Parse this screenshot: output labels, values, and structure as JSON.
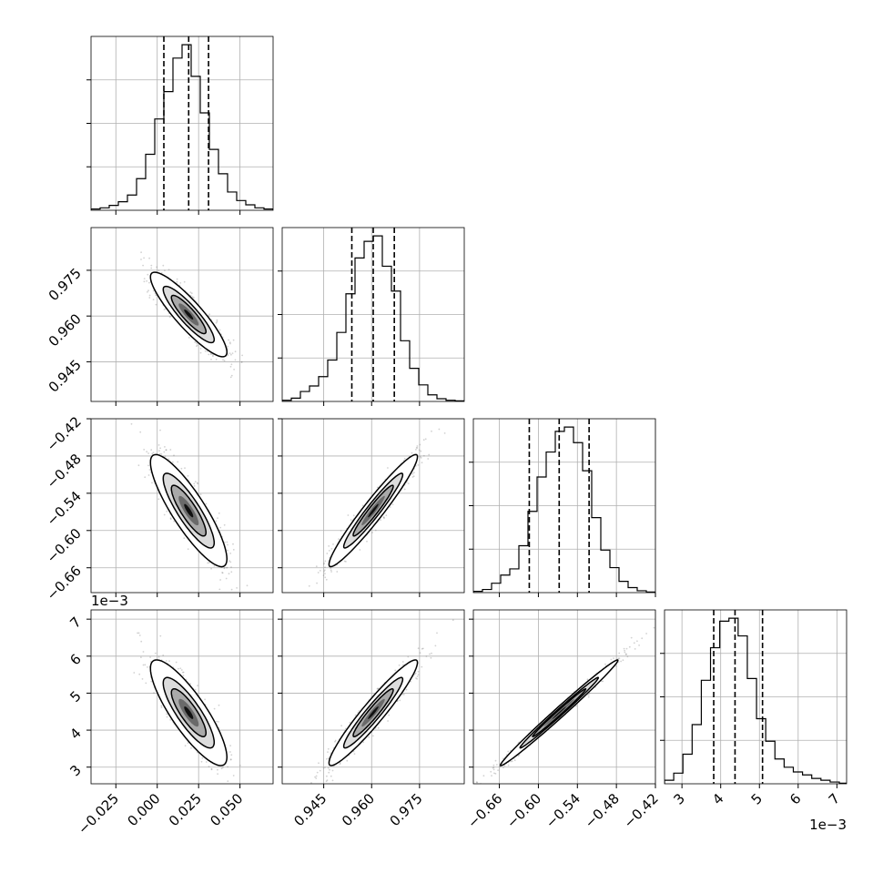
{
  "chart_data": {
    "type": "corner",
    "parameters": 4,
    "grid": true,
    "show_quantiles": true,
    "param_axes": [
      {
        "index": 0,
        "lim": [
          -0.04,
          0.07
        ],
        "ticks": [
          -0.025,
          0.0,
          0.025,
          0.05
        ],
        "tick_labels": [
          "−0.025",
          "0.000",
          "0.025",
          "0.050"
        ],
        "offset_label": ""
      },
      {
        "index": 1,
        "lim": [
          0.932,
          0.989
        ],
        "ticks": [
          0.945,
          0.96,
          0.975
        ],
        "tick_labels": [
          "0.945",
          "0.960",
          "0.975"
        ],
        "offset_label": ""
      },
      {
        "index": 2,
        "lim": [
          -0.7,
          -0.42
        ],
        "ticks": [
          -0.66,
          -0.6,
          -0.54,
          -0.48,
          -0.42
        ],
        "tick_labels": [
          "−0.66",
          "−0.60",
          "−0.54",
          "−0.48",
          "−0.42"
        ],
        "offset_label": ""
      },
      {
        "index": 3,
        "lim": [
          0.00255,
          0.00725
        ],
        "ticks": [
          0.003,
          0.004,
          0.005,
          0.006,
          0.007
        ],
        "tick_labels": [
          "3",
          "4",
          "5",
          "6",
          "7"
        ],
        "offset_label": "1e−3"
      }
    ],
    "marginals": [
      {
        "param": 0,
        "bin_edges": [
          -0.04,
          -0.0345,
          -0.029,
          -0.0235,
          -0.018,
          -0.0125,
          -0.007,
          -0.0015,
          0.004,
          0.0095,
          0.015,
          0.0205,
          0.026,
          0.0315,
          0.037,
          0.0425,
          0.048,
          0.0535,
          0.059,
          0.0645,
          0.07
        ],
        "counts": [
          2,
          4,
          8,
          14,
          25,
          52,
          92,
          150,
          195,
          250,
          272,
          220,
          160,
          100,
          60,
          30,
          16,
          9,
          4,
          2
        ],
        "quantiles": [
          0.004,
          0.019,
          0.031
        ]
      },
      {
        "param": 1,
        "bin_edges": [
          0.932,
          0.93485,
          0.9377,
          0.94055,
          0.9434,
          0.94625,
          0.9491,
          0.95195,
          0.9548,
          0.95765,
          0.9605,
          0.96335,
          0.9662,
          0.96905,
          0.9719,
          0.97475,
          0.9776,
          0.98045,
          0.9833,
          0.98615,
          0.989
        ],
        "counts": [
          2,
          6,
          18,
          28,
          45,
          75,
          125,
          195,
          260,
          290,
          300,
          245,
          200,
          110,
          60,
          30,
          12,
          5,
          2,
          1
        ],
        "quantiles": [
          0.9538,
          0.9605,
          0.9671
        ]
      },
      {
        "param": 2,
        "bin_edges": [
          -0.7,
          -0.686,
          -0.672,
          -0.658,
          -0.644,
          -0.63,
          -0.616,
          -0.602,
          -0.588,
          -0.574,
          -0.56,
          -0.546,
          -0.532,
          -0.518,
          -0.504,
          -0.49,
          -0.476,
          -0.462,
          -0.448,
          -0.434,
          -0.42
        ],
        "counts": [
          2,
          5,
          15,
          28,
          38,
          75,
          130,
          185,
          225,
          258,
          265,
          240,
          195,
          120,
          68,
          40,
          18,
          8,
          3,
          1
        ],
        "quantiles": [
          -0.614,
          -0.568,
          -0.522
        ]
      },
      {
        "param": 3,
        "bin_edges": [
          0.00255,
          0.0027875,
          0.003025,
          0.0032625,
          0.0035,
          0.0037375,
          0.003975,
          0.0042125,
          0.00445,
          0.0046875,
          0.004925,
          0.0051625,
          0.0054,
          0.0056375,
          0.005875,
          0.0061125,
          0.00635,
          0.0065875,
          0.006825,
          0.0070625,
          0.0073
        ],
        "counts": [
          6,
          18,
          50,
          100,
          175,
          230,
          275,
          280,
          250,
          178,
          110,
          72,
          42,
          28,
          20,
          15,
          9,
          6,
          3,
          1
        ],
        "quantiles": [
          0.00382,
          0.00437,
          0.00508
        ]
      }
    ],
    "pairs": [
      {
        "x_param": 0,
        "y_param": 1,
        "mean": [
          0.019,
          0.9605
        ],
        "sd": [
          0.011,
          0.0066
        ],
        "rho": -0.89,
        "contour_levels": [
          "39.3%",
          "86.5%",
          "98.9%"
        ]
      },
      {
        "x_param": 0,
        "y_param": 2,
        "mean": [
          0.019,
          -0.568
        ],
        "sd": [
          0.011,
          0.043
        ],
        "rho": -0.86,
        "contour_levels": [
          "39.3%",
          "86.5%",
          "98.9%"
        ]
      },
      {
        "x_param": 1,
        "y_param": 2,
        "mean": [
          0.9605,
          -0.568
        ],
        "sd": [
          0.0066,
          0.043
        ],
        "rho": 0.96,
        "contour_levels": [
          "39.3%",
          "86.5%",
          "98.9%"
        ]
      },
      {
        "x_param": 0,
        "y_param": 3,
        "mean": [
          0.019,
          0.00447
        ],
        "sd": [
          0.011,
          0.00068
        ],
        "rho": -0.84,
        "contour_levels": [
          "39.3%",
          "86.5%",
          "98.9%"
        ]
      },
      {
        "x_param": 1,
        "y_param": 3,
        "mean": [
          0.9605,
          0.00447
        ],
        "sd": [
          0.0066,
          0.00068
        ],
        "rho": 0.95,
        "contour_levels": [
          "39.3%",
          "86.5%",
          "98.9%"
        ]
      },
      {
        "x_param": 2,
        "y_param": 3,
        "mean": [
          -0.568,
          0.00447
        ],
        "sd": [
          0.043,
          0.00068
        ],
        "rho": 0.992,
        "contour_levels": [
          "39.3%",
          "86.5%",
          "98.9%"
        ]
      }
    ],
    "colors": {
      "line": "#000000",
      "points": "#7f7f7f",
      "grid": "#b0b0b0",
      "density": [
        "#ffffff",
        "#d9d9d9",
        "#a6a6a6",
        "#6b6b6b",
        "#000000"
      ]
    }
  }
}
